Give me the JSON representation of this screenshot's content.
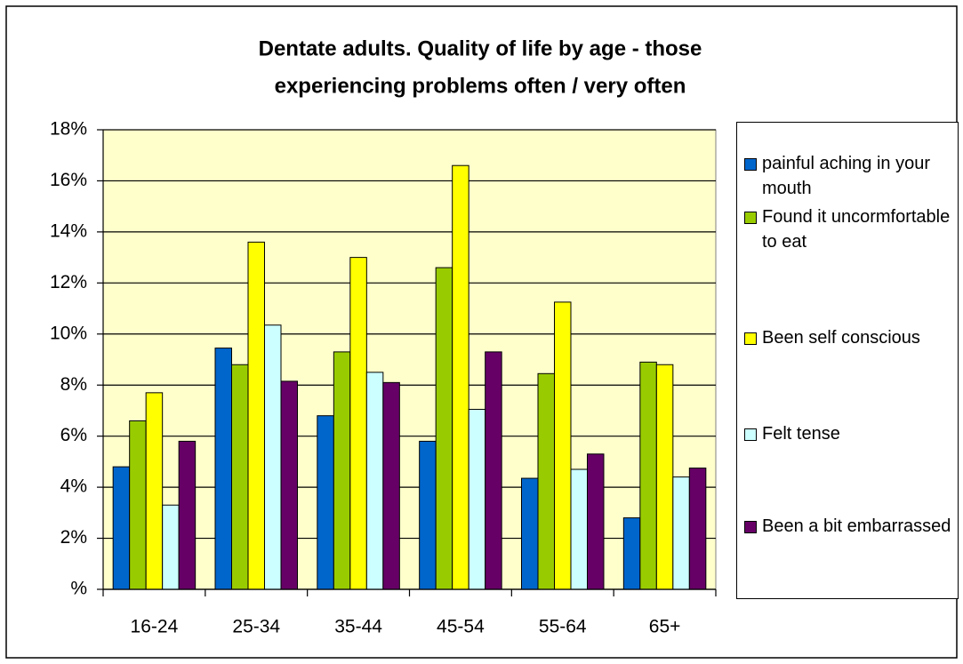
{
  "chart_data": {
    "type": "bar",
    "title": [
      "Dentate adults.  Quality of life by age - those",
      "experiencing problems often / very often"
    ],
    "categories": [
      "16-24",
      "25-34",
      "35-44",
      "45-54",
      "55-64",
      "65+"
    ],
    "series": [
      {
        "name": "painful aching in your mouth",
        "color": "#0066cc",
        "values": [
          4.8,
          9.45,
          6.8,
          5.8,
          4.35,
          2.8
        ]
      },
      {
        "name": "Found it uncormfortable to eat",
        "color": "#99cc00",
        "values": [
          6.6,
          8.8,
          9.3,
          12.6,
          8.45,
          8.9
        ]
      },
      {
        "name": "Been self conscious",
        "color": "#ffff00",
        "values": [
          7.7,
          13.6,
          13.0,
          16.6,
          11.25,
          8.8
        ]
      },
      {
        "name": "Felt tense",
        "color": "#ccffff",
        "values": [
          3.3,
          10.35,
          8.5,
          7.05,
          4.7,
          4.4
        ]
      },
      {
        "name": "Been a bit embarrassed",
        "color": "#660066",
        "values": [
          5.8,
          8.15,
          8.1,
          9.3,
          5.3,
          4.75
        ]
      }
    ],
    "ylim": [
      0,
      18
    ],
    "yticks": [
      {
        "value": 0,
        "label": "%"
      },
      {
        "value": 2,
        "label": "2%"
      },
      {
        "value": 4,
        "label": "4%"
      },
      {
        "value": 6,
        "label": "6%"
      },
      {
        "value": 8,
        "label": "8%"
      },
      {
        "value": 10,
        "label": "10%"
      },
      {
        "value": 12,
        "label": "12%"
      },
      {
        "value": 14,
        "label": "14%"
      },
      {
        "value": 16,
        "label": "16%"
      },
      {
        "value": 18,
        "label": "18%"
      }
    ],
    "grid": true,
    "plot_background": "#ffffcc",
    "legend": "right"
  }
}
